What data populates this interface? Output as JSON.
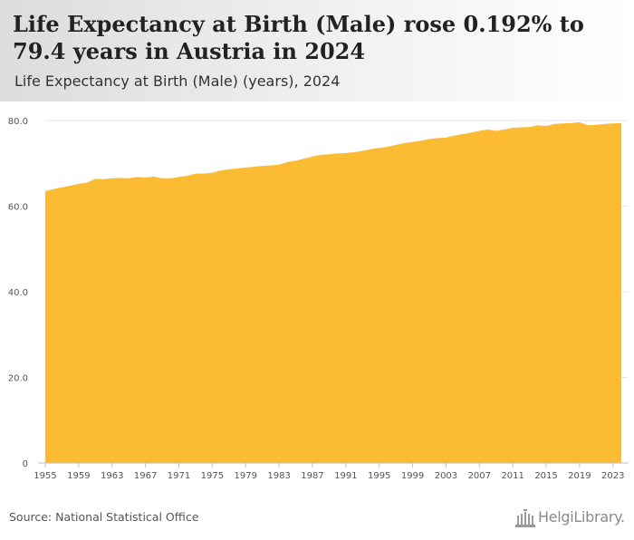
{
  "header": {
    "title": "Life Expectancy at Birth (Male) rose 0.192% to 79.4 years in Austria in 2024",
    "subtitle": "Life Expectancy at Birth (Male) (years), 2024"
  },
  "footer": {
    "source": "Source: National Statistical Office",
    "logo_text": "HelgiLibrary."
  },
  "colors": {
    "area_fill": "#fbbc33",
    "gridline": "#e6e6e6",
    "axis_text": "#555555"
  },
  "chart_data": {
    "type": "area",
    "x": [
      1955,
      1956,
      1957,
      1958,
      1959,
      1960,
      1961,
      1962,
      1963,
      1964,
      1965,
      1966,
      1967,
      1968,
      1969,
      1970,
      1971,
      1972,
      1973,
      1974,
      1975,
      1976,
      1977,
      1978,
      1979,
      1980,
      1981,
      1982,
      1983,
      1984,
      1985,
      1986,
      1987,
      1988,
      1989,
      1990,
      1991,
      1992,
      1993,
      1994,
      1995,
      1996,
      1997,
      1998,
      1999,
      2000,
      2001,
      2002,
      2003,
      2004,
      2005,
      2006,
      2007,
      2008,
      2009,
      2010,
      2011,
      2012,
      2013,
      2014,
      2015,
      2016,
      2017,
      2018,
      2019,
      2020,
      2021,
      2022,
      2023,
      2024
    ],
    "values": [
      63.5,
      64.0,
      64.4,
      64.8,
      65.2,
      65.5,
      66.4,
      66.3,
      66.5,
      66.6,
      66.5,
      66.8,
      66.7,
      66.9,
      66.5,
      66.5,
      66.8,
      67.1,
      67.6,
      67.6,
      67.8,
      68.3,
      68.6,
      68.8,
      69.0,
      69.2,
      69.4,
      69.5,
      69.7,
      70.3,
      70.6,
      71.1,
      71.6,
      72.0,
      72.1,
      72.3,
      72.4,
      72.6,
      72.9,
      73.3,
      73.6,
      73.9,
      74.3,
      74.7,
      75.0,
      75.3,
      75.7,
      75.9,
      76.0,
      76.5,
      76.8,
      77.2,
      77.6,
      77.9,
      77.6,
      77.9,
      78.3,
      78.4,
      78.5,
      78.9,
      78.7,
      79.2,
      79.3,
      79.4,
      79.6,
      78.9,
      79.0,
      79.2,
      79.3,
      79.4
    ],
    "x_tick_labels": [
      "1955",
      "1959",
      "1963",
      "1967",
      "1971",
      "1975",
      "1979",
      "1983",
      "1987",
      "1991",
      "1995",
      "1999",
      "2003",
      "2007",
      "2011",
      "2015",
      "2019",
      "2023"
    ],
    "y_tick_labels": [
      "0",
      "20.0",
      "40.0",
      "60.0",
      "80.0"
    ],
    "y_ticks": [
      0,
      20,
      40,
      60,
      80
    ],
    "ylim": [
      0,
      80
    ],
    "xlim": [
      1955,
      2024
    ],
    "grid": true,
    "legend": "none"
  }
}
